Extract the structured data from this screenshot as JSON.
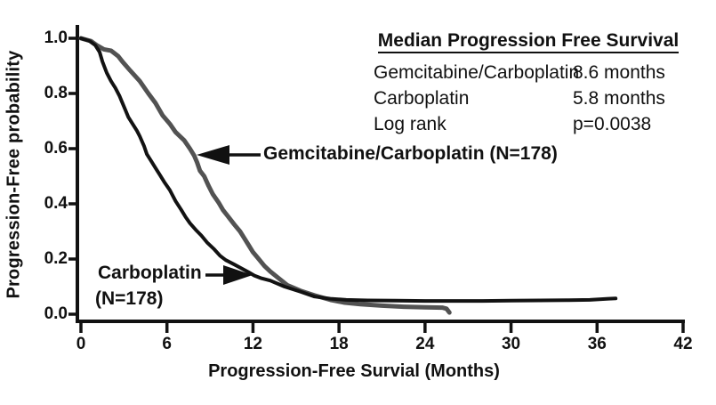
{
  "chart_data": {
    "type": "line",
    "subtype": "kaplan-meier-step-style",
    "title": "",
    "xlabel": "Progression-Free Survial (Months)",
    "ylabel": "Progression-Free probability",
    "xlim": [
      0,
      42
    ],
    "ylim": [
      0.0,
      1.0
    ],
    "grid": false,
    "x_ticks": [
      {
        "value": 0,
        "label": "0"
      },
      {
        "value": 6,
        "label": "6"
      },
      {
        "value": 12,
        "label": "12"
      },
      {
        "value": 18,
        "label": "18"
      },
      {
        "value": 24,
        "label": "24"
      },
      {
        "value": 30,
        "label": "30"
      },
      {
        "value": 36,
        "label": "36"
      },
      {
        "value": 42,
        "label": "42"
      }
    ],
    "y_ticks": [
      {
        "value": 1.0,
        "label": "1.0"
      },
      {
        "value": 0.8,
        "label": "0.8"
      },
      {
        "value": 0.6,
        "label": "0.6"
      },
      {
        "value": 0.4,
        "label": "0.4"
      },
      {
        "value": 0.2,
        "label": "0.2"
      },
      {
        "value": 0.0,
        "label": "0.0"
      }
    ],
    "series": [
      {
        "name": "Gemcitabine/Carboplatin",
        "n": 178,
        "median_months": 8.6,
        "color": "#525252",
        "stroke_width": 5,
        "points": [
          [
            0,
            1.0
          ],
          [
            0.7,
            0.99
          ],
          [
            1.1,
            0.975
          ],
          [
            1.6,
            0.96
          ],
          [
            2.1,
            0.955
          ],
          [
            2.6,
            0.935
          ],
          [
            2.9,
            0.915
          ],
          [
            3.4,
            0.885
          ],
          [
            4.1,
            0.845
          ],
          [
            4.7,
            0.8
          ],
          [
            5.2,
            0.765
          ],
          [
            5.7,
            0.72
          ],
          [
            6.2,
            0.69
          ],
          [
            6.6,
            0.66
          ],
          [
            7.2,
            0.63
          ],
          [
            7.6,
            0.6
          ],
          [
            7.9,
            0.575
          ],
          [
            8.1,
            0.55
          ],
          [
            8.3,
            0.52
          ],
          [
            8.6,
            0.5
          ],
          [
            8.9,
            0.465
          ],
          [
            9.2,
            0.435
          ],
          [
            9.6,
            0.405
          ],
          [
            9.9,
            0.378
          ],
          [
            10.3,
            0.352
          ],
          [
            10.7,
            0.325
          ],
          [
            11.1,
            0.3
          ],
          [
            11.4,
            0.275
          ],
          [
            11.7,
            0.25
          ],
          [
            12.0,
            0.225
          ],
          [
            12.4,
            0.2
          ],
          [
            12.8,
            0.175
          ],
          [
            13.2,
            0.155
          ],
          [
            13.8,
            0.13
          ],
          [
            14.4,
            0.105
          ],
          [
            15.3,
            0.085
          ],
          [
            16.3,
            0.068
          ],
          [
            17.4,
            0.052
          ],
          [
            18.4,
            0.042
          ],
          [
            19.5,
            0.036
          ],
          [
            21,
            0.031
          ],
          [
            22.5,
            0.027
          ],
          [
            24,
            0.025
          ],
          [
            25.2,
            0.024
          ],
          [
            25.5,
            0.02
          ],
          [
            25.7,
            0.006
          ]
        ]
      },
      {
        "name": "Carboplatin",
        "n": 178,
        "median_months": 5.8,
        "color": "#121212",
        "stroke_width": 4,
        "points": [
          [
            0,
            1.0
          ],
          [
            0.6,
            0.99
          ],
          [
            1.0,
            0.975
          ],
          [
            1.3,
            0.95
          ],
          [
            1.5,
            0.915
          ],
          [
            1.8,
            0.875
          ],
          [
            2.1,
            0.845
          ],
          [
            2.4,
            0.82
          ],
          [
            2.7,
            0.79
          ],
          [
            2.9,
            0.765
          ],
          [
            3.1,
            0.74
          ],
          [
            3.3,
            0.715
          ],
          [
            3.6,
            0.69
          ],
          [
            3.9,
            0.665
          ],
          [
            4.1,
            0.645
          ],
          [
            4.4,
            0.61
          ],
          [
            4.6,
            0.58
          ],
          [
            4.9,
            0.555
          ],
          [
            5.2,
            0.53
          ],
          [
            5.5,
            0.505
          ],
          [
            5.8,
            0.48
          ],
          [
            6.2,
            0.45
          ],
          [
            6.6,
            0.41
          ],
          [
            7.0,
            0.378
          ],
          [
            7.3,
            0.352
          ],
          [
            7.6,
            0.33
          ],
          [
            8.0,
            0.306
          ],
          [
            8.4,
            0.285
          ],
          [
            8.8,
            0.26
          ],
          [
            9.3,
            0.235
          ],
          [
            9.7,
            0.212
          ],
          [
            10.1,
            0.196
          ],
          [
            10.7,
            0.18
          ],
          [
            11.2,
            0.166
          ],
          [
            11.7,
            0.152
          ],
          [
            12.1,
            0.14
          ],
          [
            12.6,
            0.13
          ],
          [
            13.2,
            0.122
          ],
          [
            14.2,
            0.1
          ],
          [
            15.3,
            0.082
          ],
          [
            16.3,
            0.064
          ],
          [
            17.4,
            0.056
          ],
          [
            18.5,
            0.052
          ],
          [
            20,
            0.05
          ],
          [
            22,
            0.049
          ],
          [
            24,
            0.048
          ],
          [
            26,
            0.048
          ],
          [
            28,
            0.048
          ],
          [
            30,
            0.049
          ],
          [
            32,
            0.05
          ],
          [
            34,
            0.051
          ],
          [
            35.5,
            0.052
          ],
          [
            36.8,
            0.056
          ],
          [
            37.3,
            0.057
          ]
        ]
      }
    ]
  },
  "stats_box": {
    "title": "Median Progression Free Survival",
    "rows": [
      {
        "label": "Gemcitabine/Carboplatin",
        "value": "8.6 months"
      },
      {
        "label": "Carboplatin",
        "value": "5.8 months"
      },
      {
        "label": "Log rank",
        "value": "p=0.0038"
      }
    ]
  },
  "annotations": {
    "gem_label": "Gemcitabine/Carboplatin (N=178)",
    "carb_label_line1": "Carboplatin",
    "carb_label_line2": "(N=178)"
  },
  "colors": {
    "axis": "#111111",
    "gem_curve": "#525252",
    "carb_curve": "#121212"
  }
}
